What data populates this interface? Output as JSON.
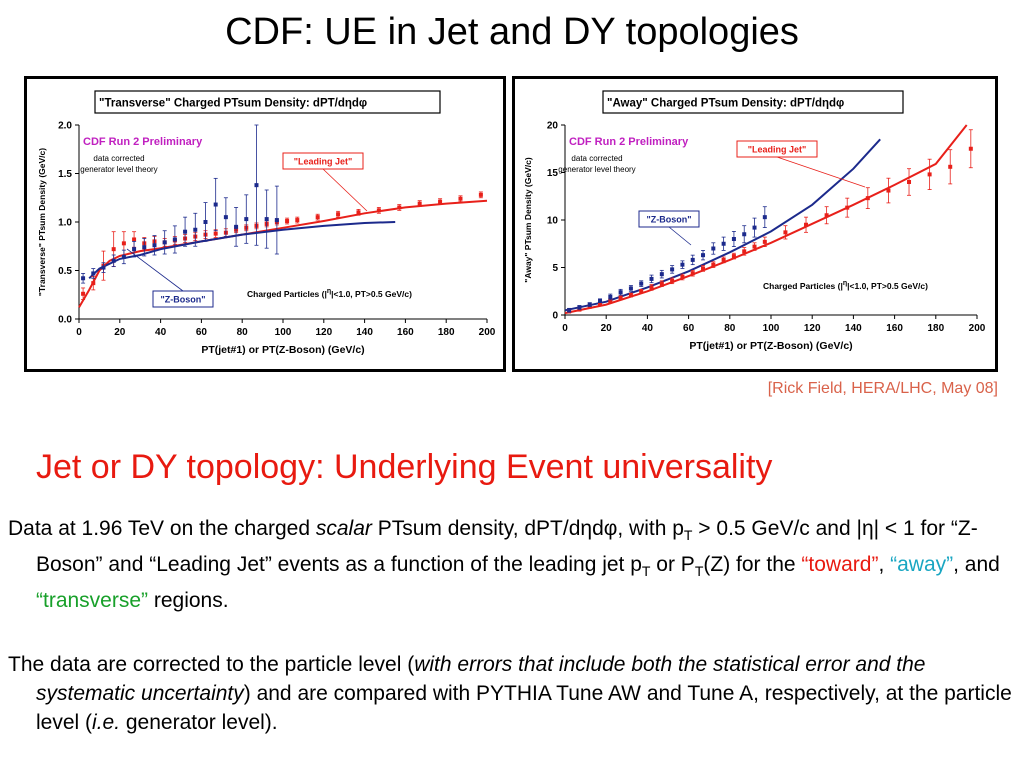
{
  "slide": {
    "title": "CDF: UE in Jet and DY topologies",
    "citation": "[Rick Field, HERA/LHC, May 08]",
    "subtitle": "Jet or DY topology: Underlying Event universality"
  },
  "para1": {
    "t1": "Data at 1.96 TeV on the charged ",
    "t2": "scalar",
    "t3": " PTsum density, dPT/dηdφ, with p",
    "t4": "T",
    "t5": " > 0.5 GeV/c and |η| < 1 for “Z-Boson” and “Leading Jet” events as a function of the leading jet p",
    "t6": "T",
    "t7": " or P",
    "t8": "T",
    "t9": "(Z) for the ",
    "toward": "“toward”",
    "t10": ", ",
    "away": "“away”",
    "t11": ", and ",
    "transverse": "“transverse”",
    "t12": " regions."
  },
  "para2": {
    "t1": "The data are corrected to the particle level (",
    "t2": "with errors that include both the statistical error and the systematic uncertainty",
    "t3": ") and are compared with PYTHIA Tune AW and Tune A, respectively, at the particle level (",
    "t4": "i.e.",
    "t5": " generator level)."
  },
  "chart_data": [
    {
      "type": "scatter",
      "title": "\"Transverse\" Charged PTsum Density: dPT/dηdφ",
      "xlabel": "PT(jet#1) or PT(Z-Boson)  (GeV/c)",
      "ylabel": "\"Transverse\" PTsum Density (GeV/c)",
      "xlim": [
        0,
        200
      ],
      "ylim": [
        0,
        2
      ],
      "x_ticks": [
        "0",
        "20",
        "40",
        "60",
        "80",
        "100",
        "120",
        "140",
        "160",
        "180",
        "200"
      ],
      "y_ticks": [
        "0.0",
        "0.5",
        "1.0",
        "1.5",
        "2.0"
      ],
      "annotations": {
        "preliminary": "CDF Run 2 Preliminary",
        "corrected1": "data corrected",
        "corrected2": "generator level theory",
        "cuts_pre": "Charged Particles (|",
        "cuts_eta": "η",
        "cuts_post": "|<1.0, PT>0.5 GeV/c)",
        "leading_jet": "\"Leading Jet\"",
        "z_boson": "\"Z-Boson\""
      },
      "colors": {
        "leading_jet": "#e8201a",
        "z_boson": "#1c2a8c"
      },
      "series": [
        {
          "name": "\"Leading Jet\"",
          "x": [
            2,
            7,
            12,
            17,
            22,
            27,
            32,
            37,
            42,
            47,
            52,
            57,
            62,
            67,
            72,
            77,
            82,
            87,
            92,
            97,
            102,
            107,
            117,
            127,
            137,
            147,
            157,
            167,
            177,
            187,
            197
          ],
          "y": [
            0.26,
            0.37,
            0.55,
            0.72,
            0.78,
            0.82,
            0.78,
            0.8,
            0.79,
            0.81,
            0.83,
            0.85,
            0.87,
            0.88,
            0.89,
            0.92,
            0.94,
            0.96,
            0.98,
            1.0,
            1.01,
            1.02,
            1.05,
            1.08,
            1.1,
            1.12,
            1.15,
            1.19,
            1.21,
            1.24,
            1.28
          ],
          "err": [
            0.06,
            0.07,
            0.15,
            0.18,
            0.12,
            0.08,
            0.06,
            0.05,
            0.04,
            0.04,
            0.04,
            0.04,
            0.04,
            0.04,
            0.04,
            0.03,
            0.03,
            0.03,
            0.03,
            0.03,
            0.03,
            0.03,
            0.03,
            0.03,
            0.03,
            0.03,
            0.03,
            0.03,
            0.03,
            0.03,
            0.03
          ]
        },
        {
          "name": "\"Z-Boson\"",
          "x": [
            2,
            7,
            12,
            17,
            22,
            27,
            32,
            37,
            42,
            47,
            52,
            57,
            62,
            67,
            72,
            77,
            82,
            87,
            92,
            97
          ],
          "y": [
            0.42,
            0.47,
            0.53,
            0.6,
            0.64,
            0.72,
            0.74,
            0.76,
            0.79,
            0.82,
            0.9,
            0.92,
            1.0,
            1.18,
            1.05,
            0.95,
            1.03,
            1.38,
            1.03,
            1.02
          ],
          "err": [
            0.05,
            0.05,
            0.05,
            0.06,
            0.07,
            0.08,
            0.09,
            0.1,
            0.12,
            0.14,
            0.15,
            0.17,
            0.2,
            0.27,
            0.2,
            0.2,
            0.25,
            0.62,
            0.3,
            0.35
          ]
        }
      ],
      "theory": [
        {
          "name": "\"Leading Jet\"",
          "x": [
            0,
            5,
            10,
            15,
            20,
            30,
            40,
            60,
            80,
            100,
            120,
            140,
            160,
            180,
            200
          ],
          "y": [
            0.12,
            0.3,
            0.5,
            0.6,
            0.65,
            0.7,
            0.73,
            0.8,
            0.87,
            0.94,
            1.01,
            1.09,
            1.15,
            1.19,
            1.22
          ]
        },
        {
          "name": "\"Z-Boson\"",
          "x": [
            5,
            10,
            20,
            30,
            40,
            60,
            80,
            100,
            120,
            140,
            155
          ],
          "y": [
            0.42,
            0.52,
            0.62,
            0.66,
            0.72,
            0.8,
            0.87,
            0.92,
            0.96,
            0.99,
            1.0
          ]
        }
      ]
    },
    {
      "type": "scatter",
      "title": "\"Away\" Charged PTsum Density: dPT/dηdφ",
      "xlabel": "PT(jet#1) or PT(Z-Boson)  (GeV/c)",
      "ylabel": "\"Away\" PTsum Density (GeV/c)",
      "xlim": [
        0,
        200
      ],
      "ylim": [
        0,
        20
      ],
      "x_ticks": [
        "0",
        "20",
        "40",
        "60",
        "80",
        "100",
        "120",
        "140",
        "160",
        "180",
        "200"
      ],
      "y_ticks": [
        "0",
        "5",
        "10",
        "15",
        "20"
      ],
      "annotations": {
        "preliminary": "CDF Run 2 Preliminary",
        "corrected1": "data corrected",
        "corrected2": "generator level theory",
        "cuts_pre": "Charged Particles (|",
        "cuts_eta": "η",
        "cuts_post": "|<1.0, PT>0.5 GeV/c)",
        "leading_jet": "\"Leading Jet\"",
        "z_boson": "\"Z-Boson\""
      },
      "colors": {
        "leading_jet": "#e8201a",
        "z_boson": "#1c2a8c"
      },
      "series": [
        {
          "name": "\"Leading Jet\"",
          "x": [
            2,
            7,
            12,
            17,
            22,
            27,
            32,
            37,
            42,
            47,
            52,
            57,
            62,
            67,
            72,
            77,
            82,
            87,
            92,
            97,
            107,
            117,
            127,
            137,
            147,
            157,
            167,
            177,
            187,
            197
          ],
          "y": [
            0.4,
            0.6,
            0.9,
            1.2,
            1.5,
            1.8,
            2.1,
            2.5,
            2.9,
            3.3,
            3.6,
            4.0,
            4.4,
            4.9,
            5.3,
            5.8,
            6.2,
            6.7,
            7.2,
            7.7,
            8.7,
            9.5,
            10.5,
            11.3,
            12.3,
            13.1,
            14.0,
            14.8,
            15.6,
            17.5
          ],
          "err": [
            0.2,
            0.2,
            0.2,
            0.2,
            0.2,
            0.2,
            0.2,
            0.2,
            0.3,
            0.3,
            0.3,
            0.3,
            0.3,
            0.3,
            0.3,
            0.3,
            0.3,
            0.4,
            0.4,
            0.5,
            0.7,
            0.8,
            0.9,
            1.0,
            1.1,
            1.3,
            1.4,
            1.6,
            1.8,
            2.0
          ]
        },
        {
          "name": "\"Z-Boson\"",
          "x": [
            2,
            7,
            12,
            17,
            22,
            27,
            32,
            37,
            42,
            47,
            52,
            57,
            62,
            67,
            72,
            77,
            82,
            87,
            92,
            97
          ],
          "y": [
            0.5,
            0.8,
            1.1,
            1.5,
            1.9,
            2.4,
            2.8,
            3.3,
            3.8,
            4.3,
            4.8,
            5.3,
            5.8,
            6.3,
            7.0,
            7.5,
            8.0,
            8.5,
            9.2,
            10.3
          ],
          "err": [
            0.2,
            0.2,
            0.2,
            0.2,
            0.3,
            0.3,
            0.3,
            0.3,
            0.4,
            0.4,
            0.4,
            0.4,
            0.5,
            0.5,
            0.6,
            0.7,
            0.8,
            0.9,
            1.0,
            1.1
          ]
        }
      ],
      "theory": [
        {
          "name": "\"Leading Jet\"",
          "x": [
            0,
            20,
            40,
            60,
            80,
            100,
            120,
            140,
            160,
            180,
            195
          ],
          "y": [
            0.2,
            1.1,
            2.5,
            4.1,
            5.8,
            7.6,
            9.6,
            11.6,
            13.7,
            15.9,
            20.0
          ]
        },
        {
          "name": "\"Z-Boson\"",
          "x": [
            0,
            20,
            40,
            60,
            80,
            100,
            120,
            140,
            153
          ],
          "y": [
            0.5,
            1.4,
            2.9,
            4.6,
            6.6,
            8.8,
            11.6,
            15.4,
            18.5
          ]
        }
      ]
    }
  ]
}
